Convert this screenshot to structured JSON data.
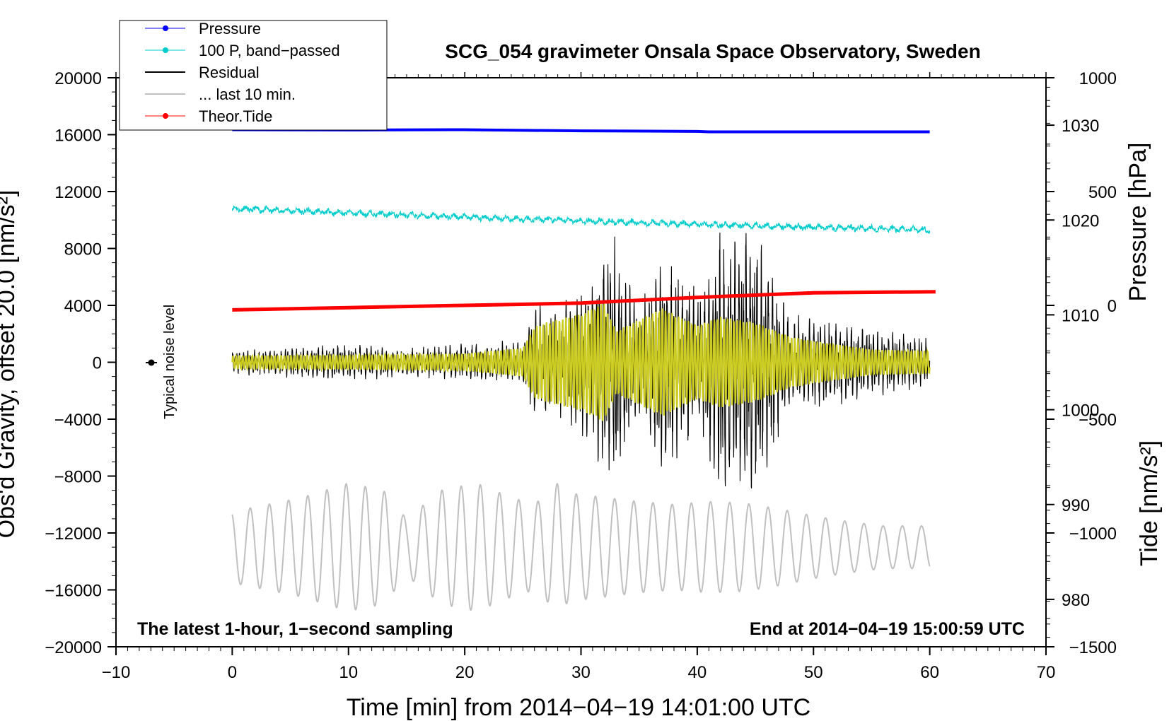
{
  "chart_data": {
    "type": "line",
    "title": "SCG_054 gravimeter Onsala Space Observatory, Sweden",
    "xlabel": "Time [min] from 2014−04−19 14:01:00 UTC",
    "ylabel_left": "Obs'd Gravity, offset 20.0 [nm/s²]",
    "ylabel_right_top": "Pressure [hPa]",
    "ylabel_right_bottom": "Tide [nm/s²]",
    "xlim": [
      -10,
      70
    ],
    "ylim_left": [
      -20000,
      20000
    ],
    "pressure_axis_range": [
      975,
      1035
    ],
    "tide_axis_range": [
      -1500,
      1000
    ],
    "x_ticks": [
      "−10",
      "0",
      "10",
      "20",
      "30",
      "40",
      "50",
      "60",
      "70"
    ],
    "y_ticks_left": [
      "20000",
      "16000",
      "12000",
      "8000",
      "4000",
      "0",
      "−4000",
      "−8000",
      "−12000",
      "−16000",
      "−20000"
    ],
    "y_ticks_pressure": [
      "1030",
      "1020",
      "1010",
      "1000",
      "990",
      "980"
    ],
    "y_ticks_tide": [
      "1000",
      "500",
      "0",
      "−500",
      "−1000",
      "−1500"
    ],
    "annotations": {
      "bottom_left": "The latest 1-hour, 1−second sampling",
      "bottom_right": "End at 2014−04−19 15:00:59 UTC",
      "noise": "Typical noise level"
    },
    "legend": [
      {
        "label": "Pressure",
        "color": "#0000ff",
        "marker": true
      },
      {
        "label": "100 P, band−passed",
        "color": "#00cccc",
        "marker": true
      },
      {
        "label": "Residual",
        "color": "#000000",
        "marker": false
      },
      {
        "label": "... last 10 min.",
        "color": "#c0c0c0",
        "marker": false
      },
      {
        "label": "Theor.Tide",
        "color": "#ff0000",
        "marker": true
      }
    ],
    "series": [
      {
        "name": "Pressure",
        "axis": "left",
        "color": "#0000ff",
        "x": [
          0,
          10,
          20,
          22,
          30,
          40,
          41,
          50,
          60
        ],
        "y": [
          16350,
          16330,
          16350,
          16330,
          16270,
          16230,
          16200,
          16200,
          16200
        ]
      },
      {
        "name": "100 P, band−passed",
        "axis": "left",
        "color": "#00cccc",
        "x": [
          0,
          10,
          20,
          30,
          40,
          50,
          60
        ],
        "y": [
          10800,
          10500,
          10200,
          9950,
          9700,
          9500,
          9300
        ]
      },
      {
        "name": "Residual",
        "axis": "left",
        "color": "#000000",
        "env_x": [
          0,
          5,
          10,
          15,
          20,
          25,
          26,
          28,
          31,
          33,
          35,
          37,
          40,
          42,
          44,
          46,
          48,
          50,
          55,
          60
        ],
        "env_y": [
          800,
          1000,
          1200,
          900,
          1200,
          1400,
          3800,
          3200,
          6000,
          8500,
          3500,
          8000,
          4500,
          8800,
          9300,
          7500,
          3000,
          3200,
          2200,
          1600
        ]
      },
      {
        "name": "Residual (band)",
        "axis": "left",
        "color": "#cccc22",
        "env_x": [
          0,
          10,
          20,
          25,
          26,
          27,
          30,
          32,
          33,
          35,
          37,
          40,
          42,
          45,
          48,
          50,
          55,
          60
        ],
        "env_y": [
          450,
          500,
          600,
          1000,
          2500,
          2800,
          3400,
          4200,
          2200,
          3000,
          3800,
          2600,
          3200,
          2800,
          1800,
          1500,
          900,
          800
        ]
      },
      {
        "name": "... last 10 min.",
        "axis": "left",
        "color": "#c0c0c0",
        "center": -13000,
        "env_x": [
          0,
          3,
          6,
          10,
          13,
          15,
          18,
          21,
          24,
          26,
          28,
          29,
          32,
          35,
          38,
          41,
          44,
          47,
          50,
          53,
          56,
          60
        ],
        "env_y": [
          2500,
          3000,
          3500,
          4500,
          4000,
          2000,
          4000,
          4500,
          3500,
          3000,
          4500,
          3800,
          3500,
          3200,
          3000,
          3200,
          3100,
          2700,
          2200,
          1800,
          1500,
          1500
        ]
      },
      {
        "name": "Theor.Tide",
        "axis": "tide",
        "color": "#ff0000",
        "x": [
          0,
          10,
          20,
          30,
          40,
          50,
          60.5
        ],
        "y": [
          -20,
          -10,
          0,
          10,
          35,
          55,
          60
        ]
      }
    ]
  }
}
